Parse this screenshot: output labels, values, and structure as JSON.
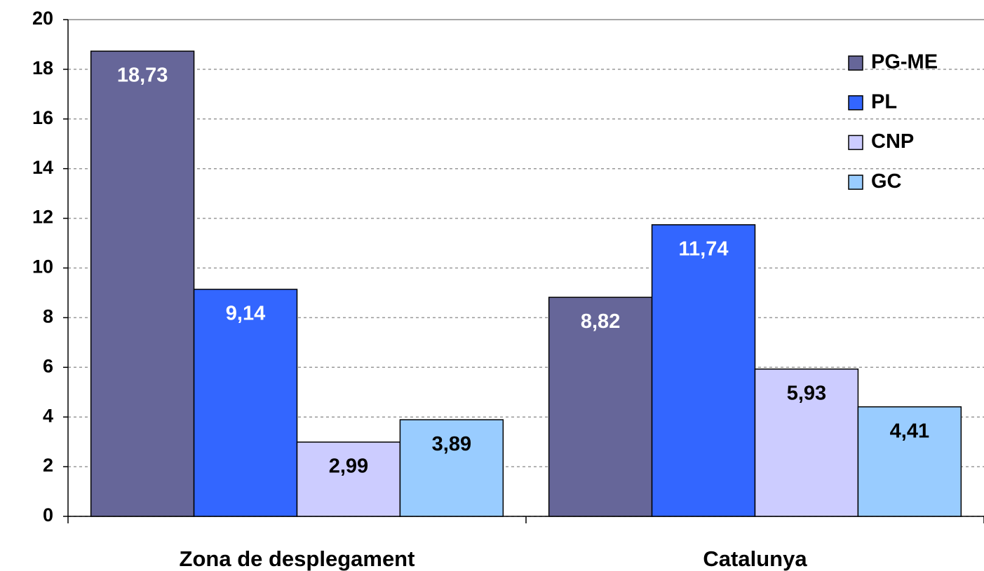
{
  "chart_data": {
    "type": "bar",
    "categories": [
      "Zona de desplegament",
      "Catalunya"
    ],
    "series": [
      {
        "name": "PG-ME",
        "color": "#666699",
        "label_color": "#ffffff",
        "values": [
          18.73,
          8.82
        ],
        "value_labels": [
          "18,73",
          "8,82"
        ]
      },
      {
        "name": "PL",
        "color": "#3366ff",
        "label_color": "#ffffff",
        "values": [
          9.14,
          11.74
        ],
        "value_labels": [
          "9,14",
          "11,74"
        ]
      },
      {
        "name": "CNP",
        "color": "#ccccff",
        "label_color": "#000000",
        "values": [
          2.99,
          5.93
        ],
        "value_labels": [
          "2,99",
          "5,93"
        ]
      },
      {
        "name": "GC",
        "color": "#99ccff",
        "label_color": "#000000",
        "values": [
          3.89,
          4.41
        ],
        "value_labels": [
          "3,89",
          "4,41"
        ]
      }
    ],
    "ylim": [
      0,
      20
    ],
    "yticks": [
      0,
      2,
      4,
      6,
      8,
      10,
      12,
      14,
      16,
      18,
      20
    ],
    "grid": true,
    "legend": "upper right"
  }
}
